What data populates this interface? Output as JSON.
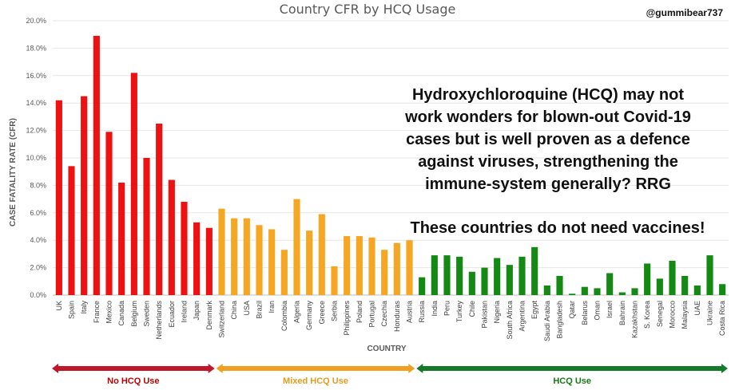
{
  "chart_data": {
    "type": "bar",
    "title": "Country CFR by HCQ Usage",
    "xlabel": "COUNTRY",
    "ylabel": "CASE FATALITY RATE (CFR)",
    "ylim": [
      0,
      20
    ],
    "yticks": [
      "0.0%",
      "2.0%",
      "4.0%",
      "6.0%",
      "8.0%",
      "10.0%",
      "12.0%",
      "14.0%",
      "16.0%",
      "18.0%",
      "20.0%"
    ],
    "grid": true,
    "categories": [
      "UK",
      "Spain",
      "Italy",
      "France",
      "Mexico",
      "Canada",
      "Belgium",
      "Sweden",
      "Netherlands",
      "Ecuador",
      "Ireland",
      "Japan",
      "Denmark",
      "Switzerland",
      "China",
      "USA",
      "Brazil",
      "Iran",
      "Colombia",
      "Algeria",
      "Germany",
      "Greece",
      "Serbia",
      "Philippines",
      "Poland",
      "Portugal",
      "Czechia",
      "Honduras",
      "Austria",
      "Russia",
      "India",
      "Peru",
      "Turkey",
      "Chile",
      "Pakistan",
      "Nigeria",
      "South Africa",
      "Argentina",
      "Egypt",
      "Saudi Arabia",
      "Bangladesh",
      "Qatar",
      "Belarus",
      "Oman",
      "Israel",
      "Bahrain",
      "Kazakhstan",
      "S. Korea",
      "Senegal",
      "Morocco",
      "Malaysia",
      "UAE",
      "Ukraine",
      "Costa Rica"
    ],
    "values": [
      14.2,
      9.4,
      14.5,
      18.9,
      11.9,
      8.2,
      16.2,
      10.0,
      12.5,
      8.4,
      6.8,
      5.3,
      4.9,
      6.3,
      5.6,
      5.6,
      5.1,
      4.8,
      3.3,
      7.0,
      4.7,
      5.9,
      2.1,
      4.3,
      4.3,
      4.2,
      3.3,
      3.8,
      4.0,
      1.3,
      2.9,
      2.9,
      2.8,
      1.7,
      2.0,
      2.7,
      2.2,
      2.8,
      3.5,
      0.7,
      1.4,
      0.1,
      0.6,
      0.5,
      1.6,
      0.2,
      0.5,
      2.3,
      1.2,
      2.5,
      1.4,
      0.7,
      2.9,
      0.8
    ],
    "groups": [
      {
        "name": "No HCQ Use",
        "start": 0,
        "end": 12,
        "color": "#ee1111",
        "label_color": "#c00000",
        "arrow_color": "#c0182b"
      },
      {
        "name": "Mixed HCQ Use",
        "start": 13,
        "end": 28,
        "color": "#f5a623",
        "label_color": "#e69a1a",
        "arrow_color": "#f0a020"
      },
      {
        "name": "HCQ Use",
        "start": 29,
        "end": 53,
        "color": "#148a14",
        "label_color": "#157a15",
        "arrow_color": "#147a2a"
      }
    ]
  },
  "handle": "@gummibear737",
  "callout": {
    "lines": [
      "Hydroxychloroquine  (HCQ) may not",
      "work wonders for blown-out Covid-19",
      "cases but is well proven as a defence",
      "against viruses, strengthening the",
      "immune-system generally? RRG"
    ],
    "tagline": "These countries do not need vaccines!"
  }
}
